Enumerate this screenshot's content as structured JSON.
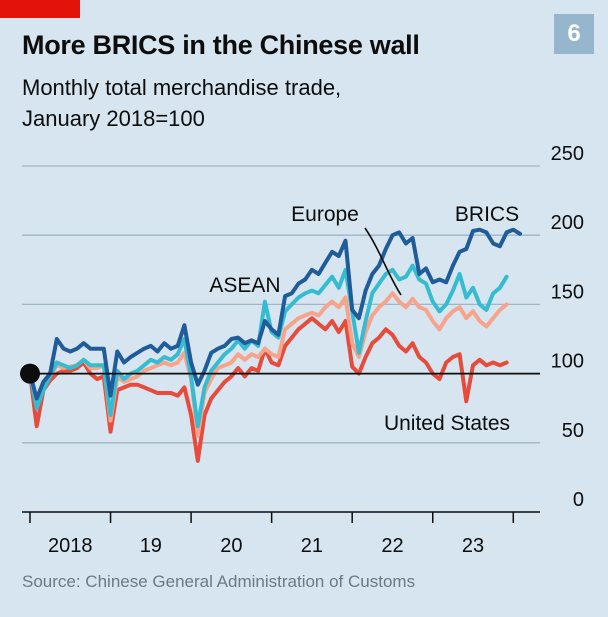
{
  "badge": "6",
  "title": "More BRICS in the Chinese wall",
  "subtitle_line1": "Monthly total merchandise trade,",
  "subtitle_line2": "January 2018=100",
  "source": "Source: Chinese General Administration of Customs",
  "colors": {
    "brics": "#1f5c99",
    "asean": "#36bcd0",
    "europe": "#f6a48c",
    "united_states": "#e64b3c",
    "grid": "#9fb6c6",
    "axis": "#0d0d0d",
    "background": "#d6e5ef"
  },
  "chart_data": {
    "type": "line",
    "title": "More BRICS in the Chinese wall",
    "subtitle": "Monthly total merchandise trade, January 2018=100",
    "x_start": "2018-01",
    "x_end": "2023-11",
    "x_tick_labels": [
      "2018",
      "19",
      "20",
      "21",
      "22",
      "23"
    ],
    "ylim": [
      0,
      250
    ],
    "y_ticks": [
      0,
      50,
      100,
      150,
      200,
      250
    ],
    "grid": true,
    "reference_line": 100,
    "series": [
      {
        "name": "BRICS",
        "values": [
          100,
          82,
          94,
          100,
          125,
          118,
          116,
          118,
          122,
          118,
          118,
          118,
          84,
          116,
          108,
          112,
          115,
          118,
          120,
          116,
          122,
          118,
          120,
          135,
          108,
          92,
          102,
          115,
          118,
          120,
          125,
          126,
          122,
          124,
          122,
          138,
          132,
          128,
          156,
          158,
          165,
          168,
          175,
          172,
          180,
          188,
          185,
          196,
          146,
          140,
          160,
          172,
          178,
          190,
          200,
          202,
          194,
          198,
          172,
          176,
          166,
          168,
          166,
          178,
          188,
          190,
          203,
          204,
          202,
          194,
          192,
          202,
          204,
          201
        ]
      },
      {
        "name": "ASEAN",
        "values": [
          100,
          75,
          88,
          98,
          108,
          106,
          104,
          106,
          110,
          106,
          106,
          106,
          70,
          102,
          96,
          100,
          102,
          106,
          110,
          108,
          112,
          110,
          114,
          125,
          98,
          62,
          90,
          102,
          108,
          114,
          118,
          124,
          118,
          124,
          120,
          152,
          130,
          126,
          145,
          150,
          155,
          158,
          160,
          158,
          164,
          170,
          162,
          175,
          145,
          115,
          138,
          158,
          165,
          172,
          175,
          168,
          170,
          178,
          168,
          165,
          152,
          145,
          150,
          160,
          172,
          155,
          162,
          150,
          146,
          158,
          162,
          170
        ]
      },
      {
        "name": "Europe",
        "values": [
          100,
          80,
          92,
          98,
          106,
          104,
          105,
          106,
          110,
          104,
          104,
          106,
          66,
          98,
          94,
          96,
          98,
          102,
          104,
          106,
          108,
          106,
          108,
          115,
          96,
          55,
          86,
          96,
          104,
          106,
          108,
          114,
          110,
          114,
          112,
          118,
          114,
          112,
          132,
          136,
          140,
          142,
          144,
          142,
          148,
          152,
          148,
          155,
          122,
          112,
          130,
          142,
          148,
          152,
          158,
          152,
          148,
          154,
          148,
          146,
          138,
          132,
          140,
          145,
          148,
          140,
          145,
          138,
          134,
          140,
          146,
          150
        ]
      },
      {
        "name": "United States",
        "values": [
          100,
          62,
          88,
          95,
          100,
          102,
          102,
          104,
          108,
          100,
          96,
          98,
          58,
          88,
          90,
          92,
          92,
          90,
          88,
          86,
          86,
          86,
          84,
          90,
          70,
          37,
          70,
          82,
          88,
          94,
          98,
          104,
          98,
          104,
          102,
          118,
          108,
          106,
          120,
          126,
          132,
          136,
          140,
          136,
          132,
          138,
          130,
          138,
          105,
          100,
          112,
          122,
          126,
          132,
          128,
          120,
          116,
          122,
          112,
          108,
          100,
          96,
          108,
          112,
          114,
          80,
          106,
          110,
          106,
          108,
          106,
          108
        ]
      }
    ],
    "series_labels": {
      "brics": "BRICS",
      "asean": "ASEAN",
      "europe": "Europe",
      "united_states": "United States"
    }
  }
}
